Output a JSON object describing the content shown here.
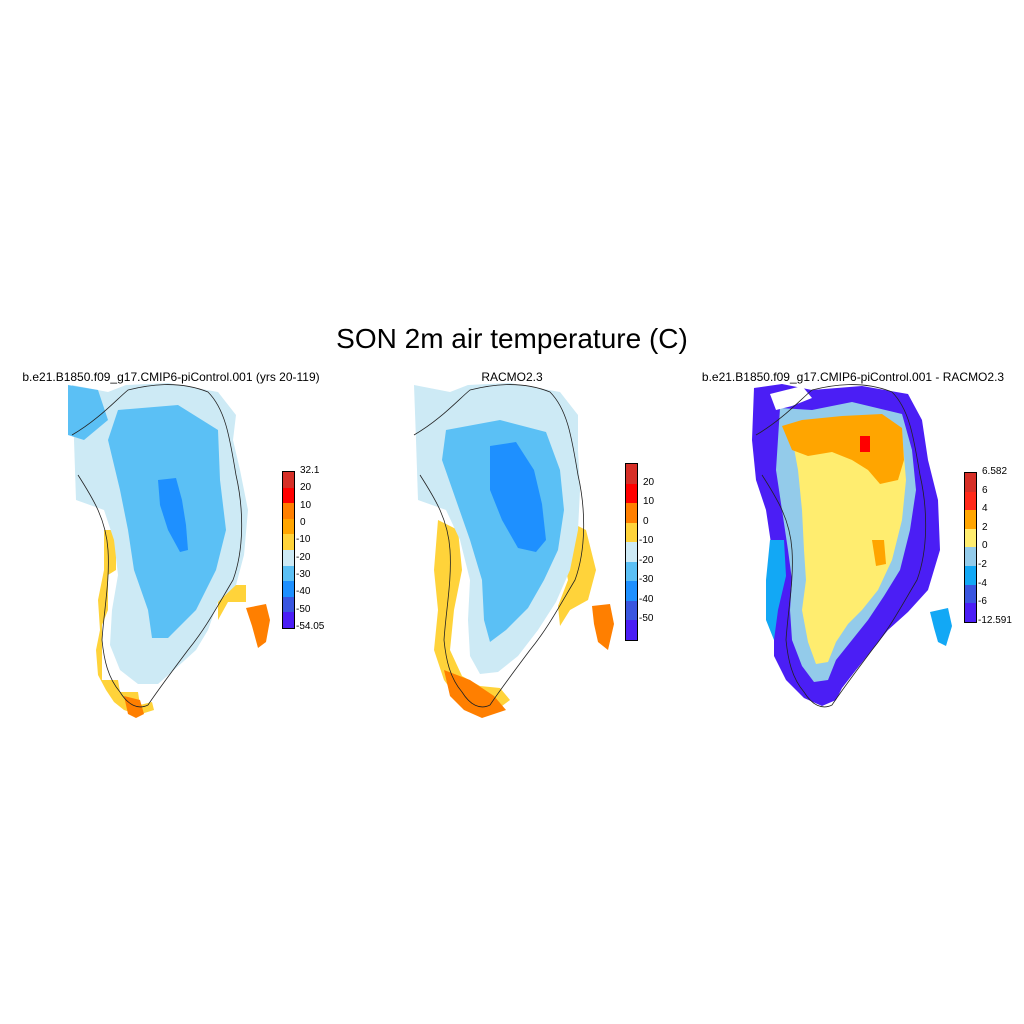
{
  "title": "SON 2m air temperature (C)",
  "panels": [
    {
      "title": "b.e21.B1850.f09_g17.CMIP6-piControl.001 (yrs 20-119)",
      "colorbar": {
        "labels": [
          "32.1",
          "20",
          "10",
          "0",
          "-10",
          "-20",
          "-30",
          "-40",
          "-50",
          "-54.05"
        ],
        "colors": [
          "#d62f27",
          "#ff0000",
          "#ff7f00",
          "#ffa500",
          "#ffd33a",
          "#cdeaf5",
          "#5bc0f5",
          "#1e90ff",
          "#3a56e0",
          "#4b1ef5"
        ]
      }
    },
    {
      "title": "RACMO2.3",
      "colorbar": {
        "labels": [
          "20",
          "10",
          "0",
          "-10",
          "-20",
          "-30",
          "-40",
          "-50"
        ],
        "colors": [
          "#d62f27",
          "#ff0000",
          "#ff7f00",
          "#ffd33a",
          "#cdeaf5",
          "#5bc0f5",
          "#1e90ff",
          "#3a56e0",
          "#4b1ef5"
        ]
      }
    },
    {
      "title": "b.e21.B1850.f09_g17.CMIP6-piControl.001 - RACMO2.3",
      "colorbar": {
        "labels": [
          "6.582",
          "6",
          "4",
          "2",
          "0",
          "-2",
          "-4",
          "-6",
          "-12.591"
        ],
        "colors": [
          "#d62f27",
          "#ff2a1a",
          "#ffa500",
          "#ffed6f",
          "#93cbea",
          "#12a8f5",
          "#3a56e0",
          "#4b1ef5"
        ]
      }
    }
  ]
}
